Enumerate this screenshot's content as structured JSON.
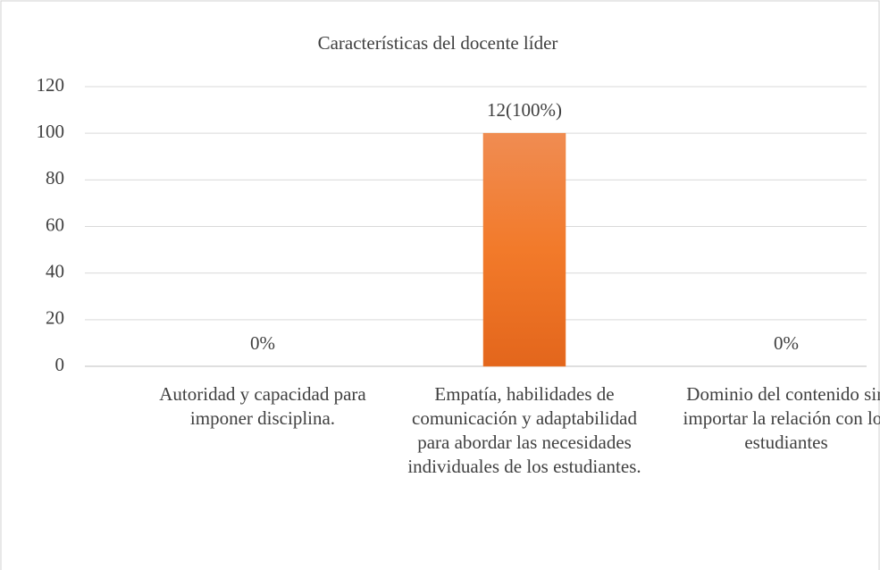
{
  "chart_data": {
    "type": "bar",
    "title": "Características del docente líder",
    "categories": [
      "Autoridad y capacidad para imponer disciplina.",
      "Empatía, habilidades de comunicación y adaptabilidad para abordar las necesidades individuales de los estudiantes.",
      "Dominio del contenido sin importar la relación con los estudiantes"
    ],
    "values": [
      0,
      100,
      0
    ],
    "value_labels": [
      "0%",
      "12(100%)",
      "0%"
    ],
    "color": "#ed7d31",
    "ylim": [
      0,
      120
    ],
    "yticks": [
      0,
      20,
      40,
      60,
      80,
      100,
      120
    ],
    "grid": true
  }
}
